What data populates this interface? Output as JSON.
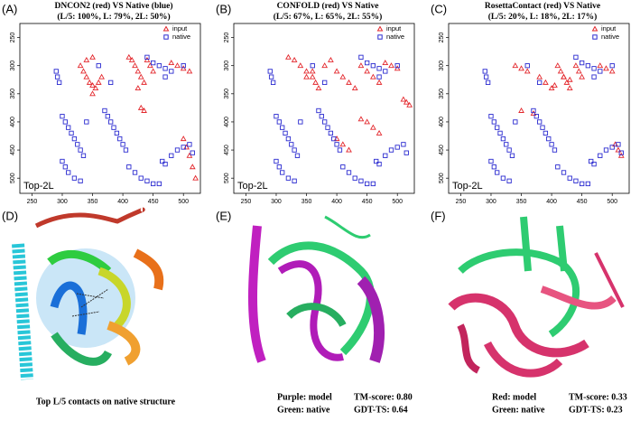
{
  "chart_data": [
    {
      "type": "scatter",
      "panel_label": "(A)",
      "title": "DNCON2 (red) VS Native (blue)",
      "subtitle": "(L/5: 100%,  L: 79%,  2L: 50%)",
      "annotation": "Top-2L",
      "xlim": [
        230,
        528
      ],
      "ylim": [
        225,
        527
      ],
      "y_reversed": true,
      "xticks": [
        250,
        300,
        350,
        400,
        450,
        500
      ],
      "yticks": [
        250,
        300,
        350,
        400,
        450,
        500
      ],
      "legend": "upper right",
      "series": [
        {
          "name": "input",
          "color": "#e3262b",
          "marker": "triangle",
          "x": [
            330,
            335,
            340,
            345,
            350,
            355,
            360,
            365,
            340,
            350,
            410,
            415,
            420,
            425,
            430,
            435,
            440,
            445,
            450,
            425,
            480,
            490,
            500,
            510,
            430,
            435,
            500,
            505,
            510,
            515,
            520,
            350
          ],
          "values": [
            300,
            310,
            320,
            330,
            335,
            340,
            330,
            320,
            290,
            285,
            285,
            290,
            300,
            310,
            320,
            330,
            290,
            300,
            310,
            340,
            295,
            300,
            305,
            310,
            375,
            380,
            430,
            445,
            460,
            480,
            500,
            350
          ]
        },
        {
          "name": "native",
          "color": "#2b2bd0",
          "marker": "square",
          "x": [
            290,
            292,
            295,
            300,
            305,
            310,
            315,
            320,
            325,
            330,
            335,
            300,
            305,
            310,
            320,
            330,
            340,
            370,
            375,
            380,
            385,
            390,
            395,
            400,
            405,
            410,
            420,
            430,
            440,
            450,
            460,
            465,
            470,
            480,
            490,
            500,
            510,
            515,
            460,
            470,
            480,
            360,
            440,
            450,
            500,
            380,
            470
          ],
          "values": [
            310,
            320,
            330,
            390,
            400,
            410,
            420,
            430,
            440,
            450,
            460,
            470,
            480,
            490,
            500,
            505,
            400,
            380,
            390,
            400,
            410,
            420,
            430,
            440,
            450,
            480,
            490,
            500,
            505,
            510,
            510,
            470,
            475,
            460,
            450,
            445,
            440,
            455,
            300,
            305,
            310,
            300,
            285,
            295,
            300,
            330,
            320
          ]
        }
      ]
    },
    {
      "type": "scatter",
      "panel_label": "(B)",
      "title": "CONFOLD (red) VS Native",
      "subtitle": "(L/5: 67%,  L: 65%,  2L: 55%)",
      "annotation": "Top-2L",
      "xlim": [
        230,
        528
      ],
      "ylim": [
        225,
        527
      ],
      "y_reversed": true,
      "xticks": [
        250,
        300,
        350,
        400,
        450,
        500
      ],
      "yticks": [
        250,
        300,
        350,
        400,
        450,
        500
      ],
      "legend": "upper right",
      "series": [
        {
          "name": "input",
          "color": "#e3262b",
          "marker": "triangle",
          "x": [
            320,
            330,
            340,
            350,
            360,
            365,
            370,
            380,
            390,
            400,
            410,
            420,
            430,
            440,
            450,
            460,
            470,
            480,
            490,
            500,
            510,
            515,
            520,
            440,
            450,
            460,
            470,
            400,
            410,
            420,
            350,
            360
          ],
          "values": [
            285,
            290,
            300,
            310,
            320,
            330,
            340,
            300,
            290,
            310,
            320,
            330,
            340,
            300,
            310,
            320,
            330,
            295,
            300,
            305,
            360,
            365,
            370,
            395,
            400,
            410,
            420,
            430,
            440,
            450,
            320,
            310
          ]
        },
        {
          "name": "native",
          "color": "#2b2bd0",
          "marker": "square",
          "x": [
            290,
            292,
            295,
            300,
            305,
            310,
            315,
            320,
            325,
            330,
            335,
            300,
            305,
            310,
            320,
            330,
            340,
            370,
            375,
            380,
            385,
            390,
            395,
            400,
            405,
            410,
            420,
            430,
            440,
            450,
            460,
            465,
            470,
            480,
            490,
            500,
            510,
            515,
            460,
            470,
            480,
            360,
            440,
            450,
            500,
            380,
            470
          ],
          "values": [
            310,
            320,
            330,
            390,
            400,
            410,
            420,
            430,
            440,
            450,
            460,
            470,
            480,
            490,
            500,
            505,
            400,
            380,
            390,
            400,
            410,
            420,
            430,
            440,
            450,
            480,
            490,
            500,
            505,
            510,
            510,
            470,
            475,
            460,
            450,
            445,
            440,
            455,
            300,
            305,
            310,
            300,
            285,
            295,
            300,
            330,
            320
          ]
        }
      ]
    },
    {
      "type": "scatter",
      "panel_label": "(C)",
      "title": "RosettaContact (red) VS Native",
      "subtitle": "(L/5: 20%,  L: 18%,  2L: 17%)",
      "annotation": "Top-2L",
      "xlim": [
        230,
        528
      ],
      "ylim": [
        225,
        527
      ],
      "y_reversed": true,
      "xticks": [
        250,
        300,
        350,
        400,
        450,
        500
      ],
      "yticks": [
        250,
        300,
        350,
        400,
        450,
        500
      ],
      "legend": "upper right",
      "series": [
        {
          "name": "input",
          "color": "#e3262b",
          "marker": "triangle",
          "x": [
            340,
            350,
            360,
            380,
            390,
            400,
            405,
            410,
            415,
            420,
            425,
            430,
            440,
            445,
            450,
            480,
            490,
            500,
            505,
            510,
            515,
            420,
            430,
            350,
            370
          ],
          "values": [
            300,
            305,
            310,
            320,
            330,
            340,
            335,
            300,
            310,
            320,
            330,
            340,
            300,
            310,
            320,
            300,
            305,
            310,
            440,
            450,
            460,
            320,
            325,
            380,
            385
          ]
        },
        {
          "name": "native",
          "color": "#2b2bd0",
          "marker": "square",
          "x": [
            290,
            292,
            295,
            300,
            305,
            310,
            315,
            320,
            325,
            330,
            335,
            300,
            305,
            310,
            320,
            330,
            340,
            370,
            375,
            380,
            385,
            390,
            395,
            400,
            405,
            410,
            420,
            430,
            440,
            450,
            460,
            465,
            470,
            480,
            490,
            500,
            510,
            515,
            460,
            470,
            480,
            360,
            440,
            450,
            500,
            380,
            470
          ],
          "values": [
            310,
            320,
            330,
            390,
            400,
            410,
            420,
            430,
            440,
            450,
            460,
            470,
            480,
            490,
            500,
            505,
            400,
            380,
            390,
            400,
            410,
            420,
            430,
            440,
            450,
            480,
            490,
            500,
            505,
            510,
            510,
            470,
            475,
            460,
            450,
            445,
            440,
            455,
            300,
            305,
            310,
            300,
            285,
            295,
            300,
            330,
            320
          ]
        }
      ]
    }
  ],
  "panels": [
    {
      "label": "(D)",
      "caption": [
        "Top L/5 contacts on native structure"
      ]
    },
    {
      "label": "(E)",
      "caption": [
        "Purple: model",
        "TM-score: 0.80",
        "Green: native",
        "GDT-TS: 0.64"
      ]
    },
    {
      "label": "(F)",
      "caption": [
        "Red: model",
        "TM-score: 0.33",
        "Green: native",
        "GDT-TS: 0.23"
      ]
    }
  ]
}
